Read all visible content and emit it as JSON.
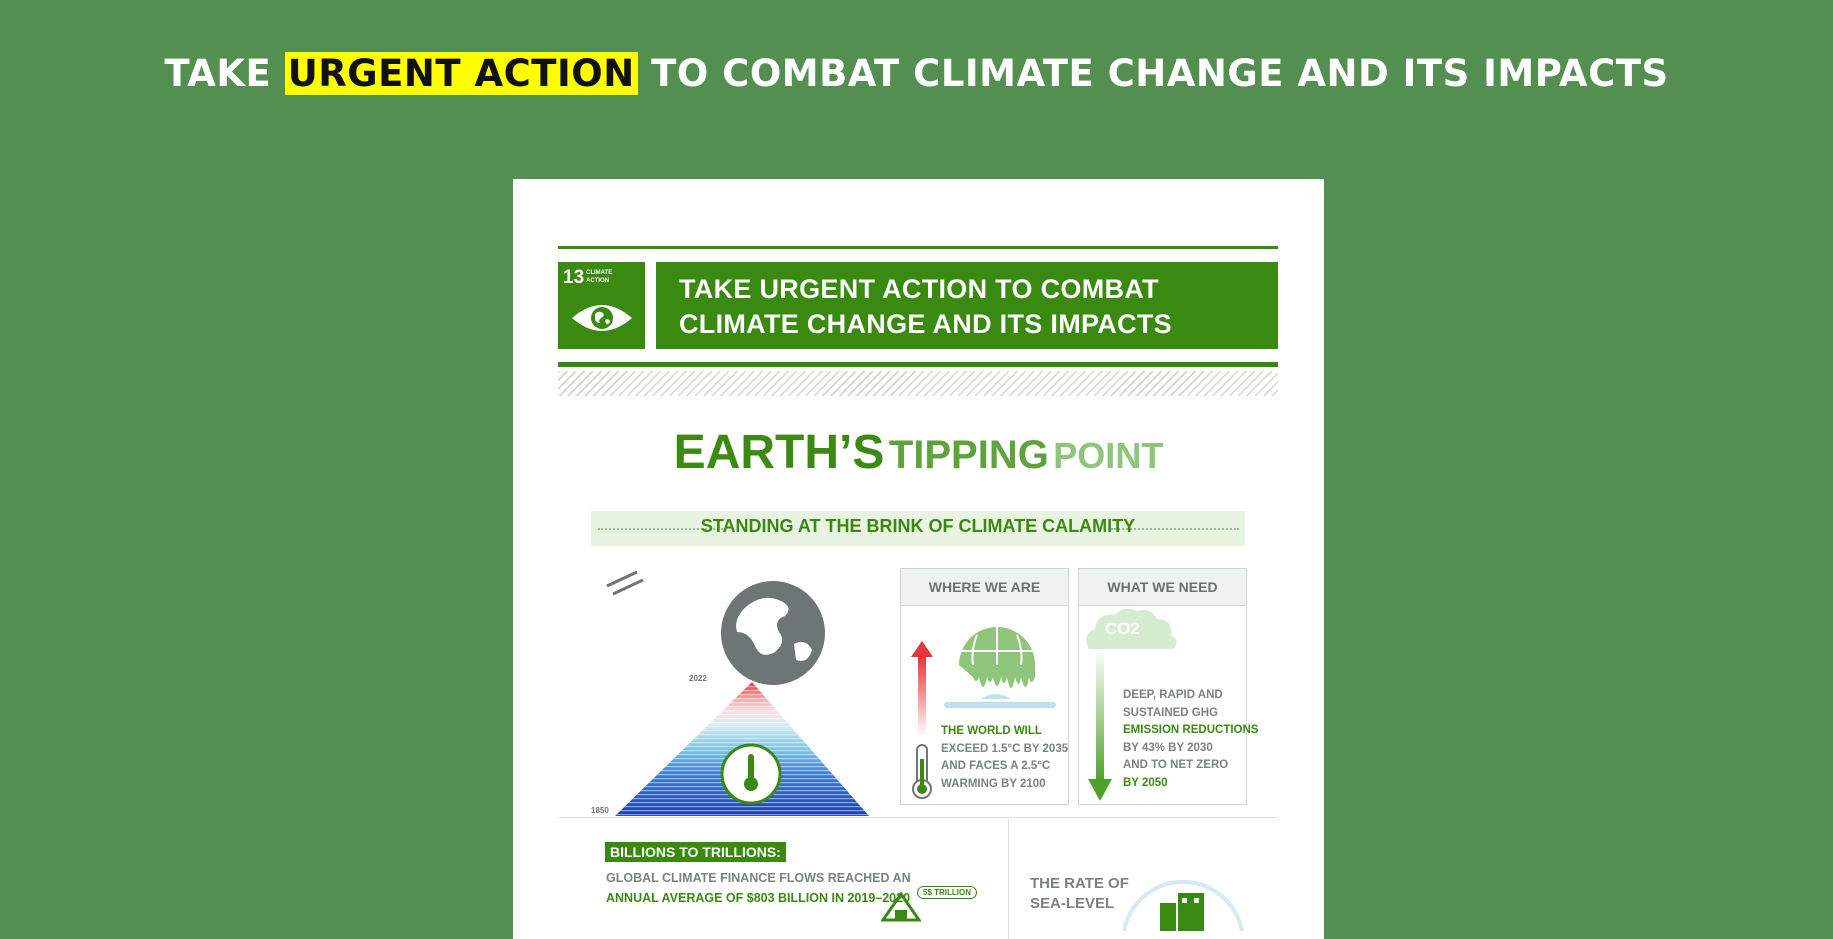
{
  "headline": {
    "prefix": "TAKE",
    "highlight": "URGENT ACTION",
    "suffix": "TO COMBAT CLIMATE CHANGE AND ITS IMPACTS"
  },
  "colors": {
    "page_bg": "#548f52",
    "highlight": "#ffff00",
    "sdg_green": "#3a8a12"
  },
  "poster": {
    "sdg": {
      "number": "13",
      "label": "CLIMATE ACTION",
      "icon": "eye-globe-icon"
    },
    "banner": {
      "line1": "TAKE URGENT ACTION TO COMBAT",
      "line2": "CLIMATE CHANGE AND ITS IMPACTS"
    },
    "title": {
      "w1": "EARTH’S",
      "w2": "TIPPING",
      "w3": "POINT"
    },
    "subtitle": "STANDING AT THE BRINK OF CLIMATE CALAMITY",
    "warming": {
      "year_top": "2022",
      "year_bottom": "1850"
    },
    "where_we_are": {
      "heading": "WHERE WE ARE",
      "lines": [
        "THE WORLD WILL",
        "EXCEED 1.5°C BY 2035",
        "AND FACES A 2.5°C",
        "WARMING BY 2100"
      ]
    },
    "what_we_need": {
      "heading": "WHAT WE NEED",
      "co2": "CO2",
      "lines": [
        "DEEP, RAPID AND",
        "SUSTAINED GHG",
        "EMISSION REDUCTIONS",
        "BY 43% BY 2030",
        "AND TO NET ZERO",
        "BY 2050"
      ]
    },
    "finance": {
      "badge": "BILLIONS TO TRILLIONS:",
      "line1": "GLOBAL CLIMATE FINANCE FLOWS REACHED AN",
      "line2": "ANNUAL AVERAGE OF $803 BILLION IN 2019–2020",
      "trillion": "5$ TRILLION"
    },
    "sea_level": {
      "line1": "THE RATE OF",
      "line2": "SEA-LEVEL"
    }
  }
}
